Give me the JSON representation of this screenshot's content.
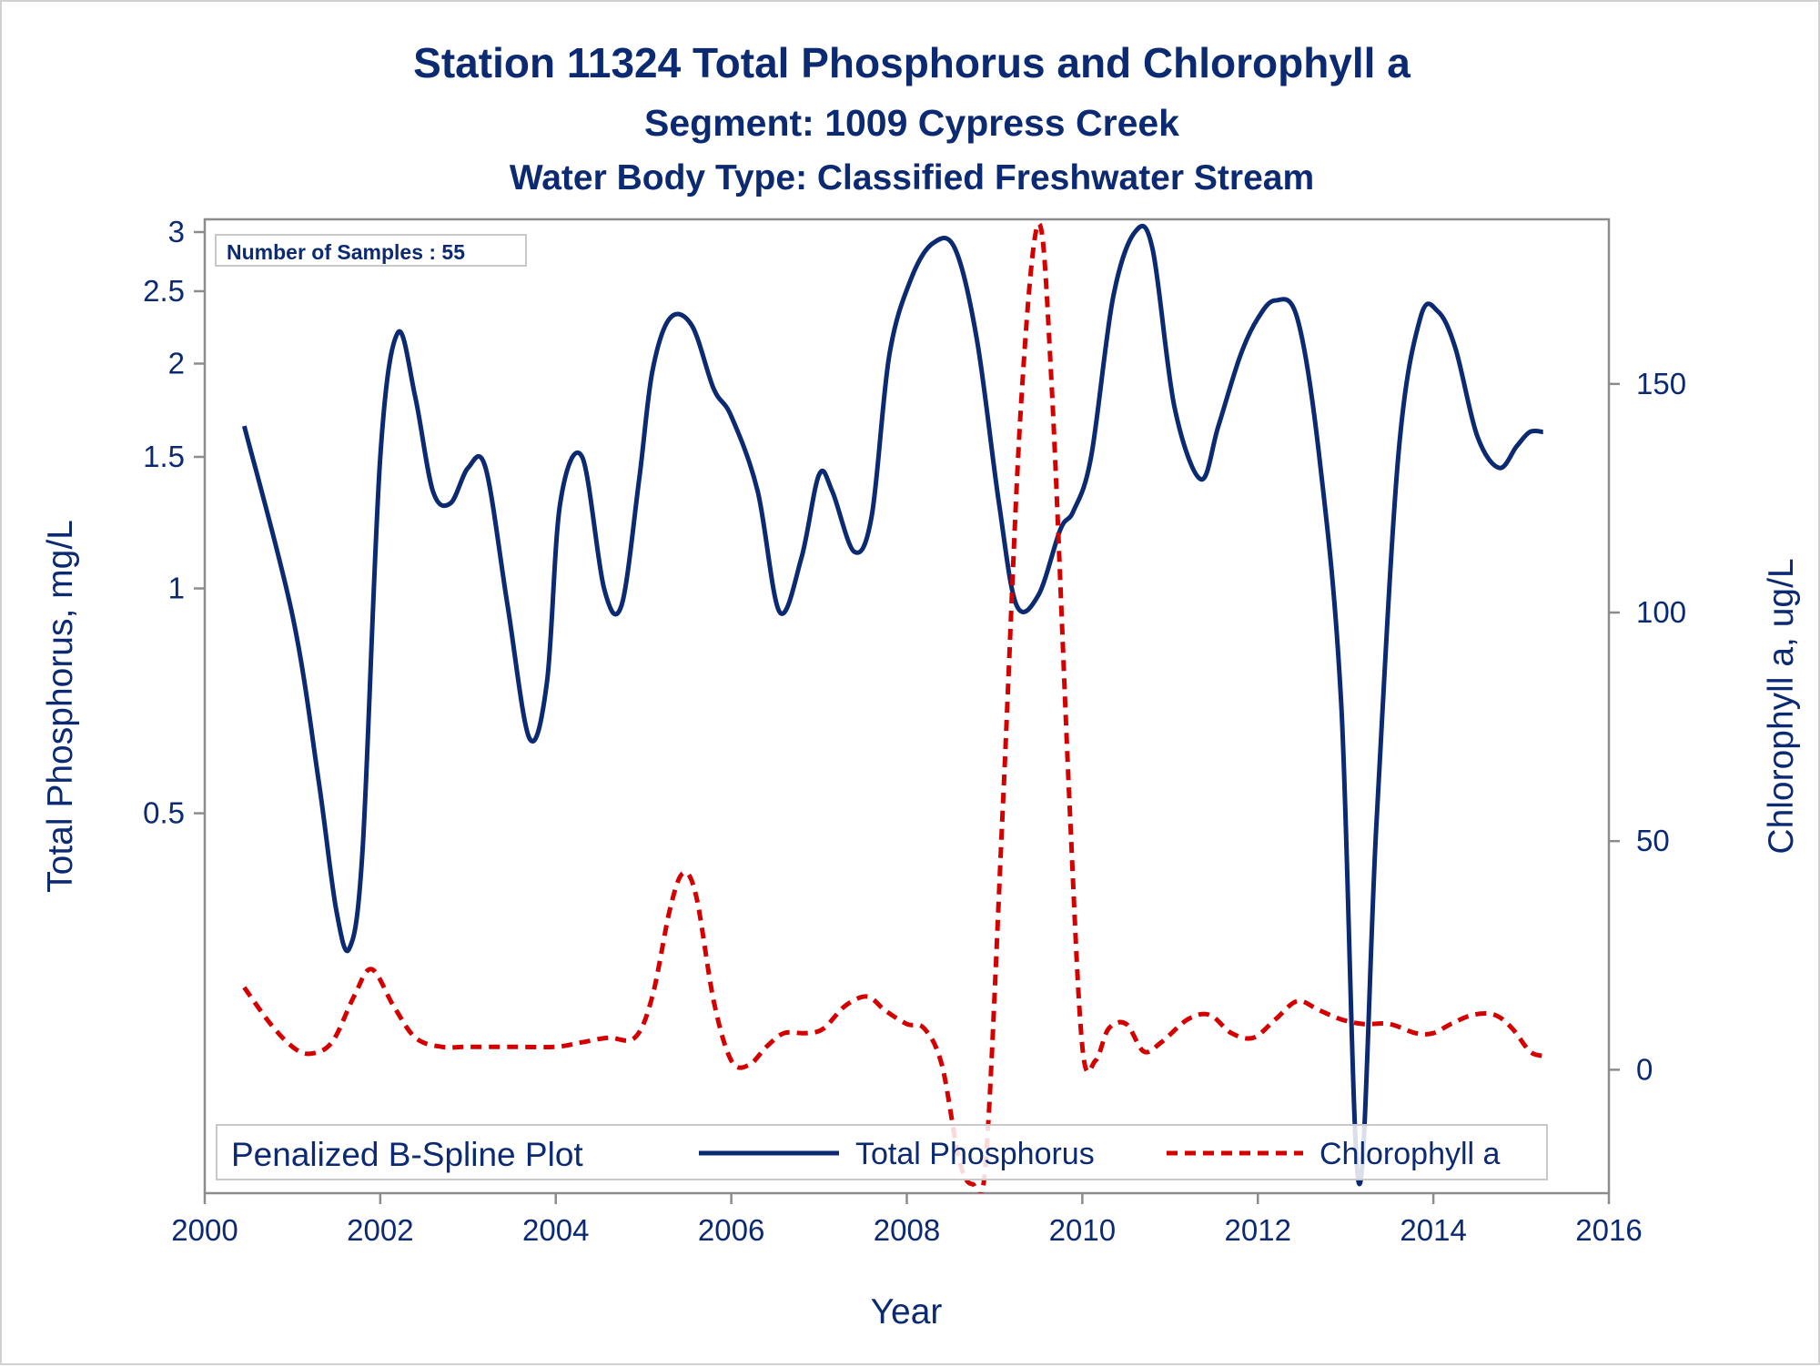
{
  "titles": {
    "line1": "Station 11324  Total Phosphorus and Chlorophyll a",
    "line2": "Segment: 1009  Cypress Creek",
    "line3": "Water Body Type: Classified Freshwater Stream"
  },
  "inset": {
    "text": "Number of Samples : 55"
  },
  "legend": {
    "title": "Penalized B-Spline Plot",
    "entries": [
      "Total Phosphorus",
      "Chlorophyll a"
    ]
  },
  "colors": {
    "phosphorus": "#0b2a72",
    "chlorophyll": "#d40000",
    "text": "#0b2a72",
    "axis": "#8c8c8c"
  },
  "chart_data": {
    "type": "line",
    "title": "Station 11324  Total Phosphorus and Chlorophyll a",
    "xlabel": "Year",
    "ylabel_left": "Total Phosphorus, mg/L",
    "ylabel_right": "Chlorophyll a, ug/L",
    "x_ticks": [
      "2000",
      "2002",
      "2004",
      "2006",
      "2008",
      "2010",
      "2012",
      "2014",
      "2016"
    ],
    "xlim": [
      2000,
      2016
    ],
    "y_left_scale": "log",
    "y_left_ticks": [
      "0.5",
      "1",
      "1.5",
      "2",
      "2.5",
      "3"
    ],
    "y_left_lim": [
      0.155,
      3.12
    ],
    "y_right_ticks": [
      "0",
      "50",
      "100",
      "150"
    ],
    "y_right_lim": [
      -27,
      186
    ],
    "grid": false,
    "legend_position": "bottom-inside",
    "series": [
      {
        "name": "Total Phosphorus",
        "axis": "left",
        "style": "solid",
        "x": [
          2000.45,
          2001.0,
          2001.3,
          2001.5,
          2001.65,
          2001.8,
          2002.0,
          2002.2,
          2002.4,
          2002.6,
          2002.8,
          2003.0,
          2003.2,
          2003.45,
          2003.7,
          2003.9,
          2004.05,
          2004.3,
          2004.55,
          2004.75,
          2004.95,
          2005.1,
          2005.3,
          2005.55,
          2005.8,
          2006.0,
          2006.3,
          2006.55,
          2006.8,
          2007.0,
          2007.15,
          2007.4,
          2007.6,
          2007.8,
          2008.05,
          2008.3,
          2008.55,
          2008.8,
          2009.05,
          2009.25,
          2009.5,
          2009.75,
          2009.9,
          2010.1,
          2010.35,
          2010.6,
          2010.8,
          2011.05,
          2011.35,
          2011.55,
          2011.8,
          2012.0,
          2012.2,
          2012.45,
          2012.7,
          2012.95,
          2013.15,
          2013.35,
          2013.6,
          2013.85,
          2014.05,
          2014.25,
          2014.5,
          2014.75,
          2014.95,
          2015.1,
          2015.25
        ],
        "y": [
          1.65,
          0.92,
          0.55,
          0.37,
          0.33,
          0.45,
          1.5,
          2.2,
          1.8,
          1.35,
          1.3,
          1.45,
          1.45,
          0.95,
          0.63,
          0.75,
          1.3,
          1.5,
          1.0,
          0.95,
          1.4,
          1.95,
          2.3,
          2.25,
          1.85,
          1.7,
          1.35,
          0.93,
          1.1,
          1.42,
          1.35,
          1.12,
          1.25,
          2.05,
          2.6,
          2.9,
          2.85,
          2.15,
          1.3,
          0.95,
          0.98,
          1.2,
          1.27,
          1.5,
          2.45,
          3.0,
          2.85,
          1.75,
          1.4,
          1.65,
          2.05,
          2.3,
          2.43,
          2.3,
          1.5,
          0.7,
          0.16,
          0.48,
          1.5,
          2.3,
          2.35,
          2.1,
          1.6,
          1.45,
          1.55,
          1.62,
          1.62
        ]
      },
      {
        "name": "Chlorophyll a",
        "axis": "right",
        "style": "dashed",
        "x": [
          2000.45,
          2000.75,
          2001.0,
          2001.2,
          2001.45,
          2001.7,
          2001.9,
          2002.15,
          2002.4,
          2002.7,
          2003.0,
          2003.5,
          2004.0,
          2004.3,
          2004.6,
          2004.9,
          2005.1,
          2005.3,
          2005.45,
          2005.6,
          2005.8,
          2006.0,
          2006.2,
          2006.4,
          2006.6,
          2006.85,
          2007.05,
          2007.3,
          2007.55,
          2007.75,
          2008.0,
          2008.2,
          2008.4,
          2008.6,
          2008.75,
          2008.9,
          2009.1,
          2009.3,
          2009.5,
          2009.65,
          2009.85,
          2010.0,
          2010.15,
          2010.3,
          2010.5,
          2010.7,
          2010.9,
          2011.2,
          2011.45,
          2011.7,
          2011.95,
          2012.2,
          2012.45,
          2012.7,
          2012.95,
          2013.2,
          2013.5,
          2013.8,
          2014.0,
          2014.2,
          2014.45,
          2014.7,
          2014.9,
          2015.1,
          2015.25
        ],
        "y": [
          18,
          10,
          5,
          3.5,
          6,
          16,
          22,
          14,
          7,
          5,
          5,
          5,
          5,
          6,
          7,
          7,
          16,
          35,
          43,
          38,
          15,
          2,
          1,
          5,
          8,
          8,
          9,
          14,
          16,
          13,
          10,
          9,
          1,
          -20,
          -25,
          -20,
          60,
          145,
          185,
          150,
          60,
          5,
          2,
          9,
          10,
          4,
          6,
          11,
          12,
          8,
          7,
          11,
          15,
          13,
          11,
          10,
          10,
          8,
          8,
          10,
          12,
          12,
          9,
          4,
          3
        ]
      }
    ]
  }
}
